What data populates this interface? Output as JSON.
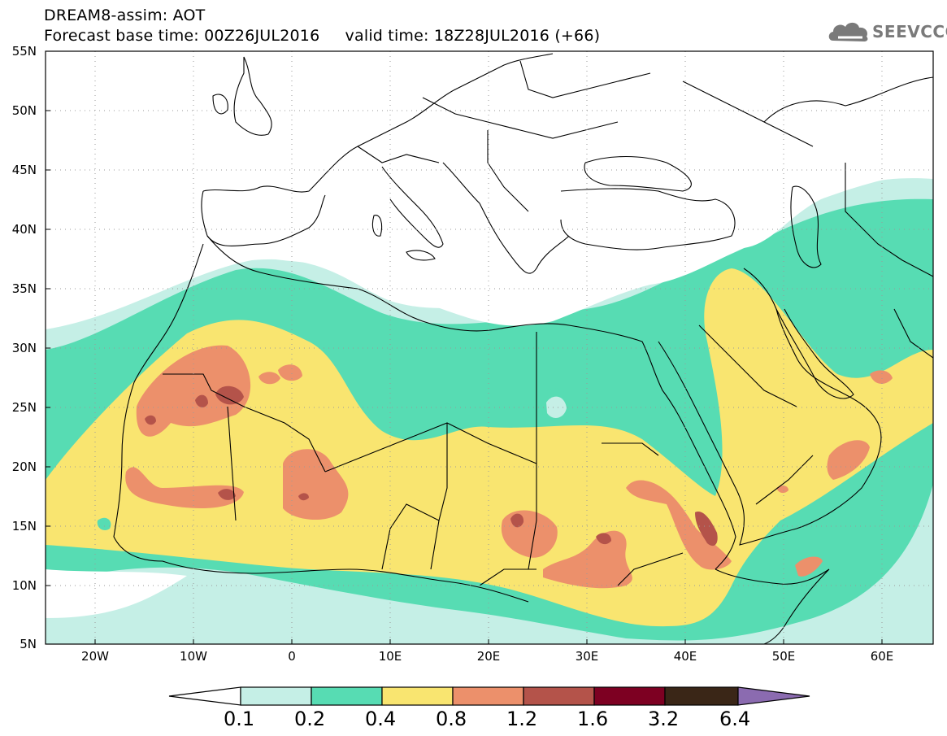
{
  "header": {
    "line1": "DREAM8-assim: AOT",
    "line2": "Forecast base time: 00Z26JUL2016     valid time: 18Z28JUL2016 (+66)"
  },
  "logo": {
    "text": "SEEVCCC",
    "icon": "cloud-icon",
    "color": "#7a7a7a"
  },
  "map": {
    "y_ticks": [
      "55N",
      "50N",
      "45N",
      "40N",
      "35N",
      "30N",
      "25N",
      "20N",
      "15N",
      "10N",
      "5N"
    ],
    "x_ticks": [
      "20W",
      "10W",
      "0",
      "10E",
      "20E",
      "30E",
      "40E",
      "50E",
      "60E"
    ],
    "lon_range": [
      -25,
      65
    ],
    "lat_range": [
      5,
      55
    ]
  },
  "legend": {
    "thresholds": [
      "0.1",
      "0.2",
      "0.4",
      "0.8",
      "1.2",
      "1.6",
      "3.2",
      "6.4"
    ],
    "colors": [
      "#ffffff",
      "#c5efe6",
      "#57dcb3",
      "#f9e570",
      "#ec906b",
      "#b4534a",
      "#7d0022",
      "#3a2617",
      "#8b6bb0"
    ]
  }
}
